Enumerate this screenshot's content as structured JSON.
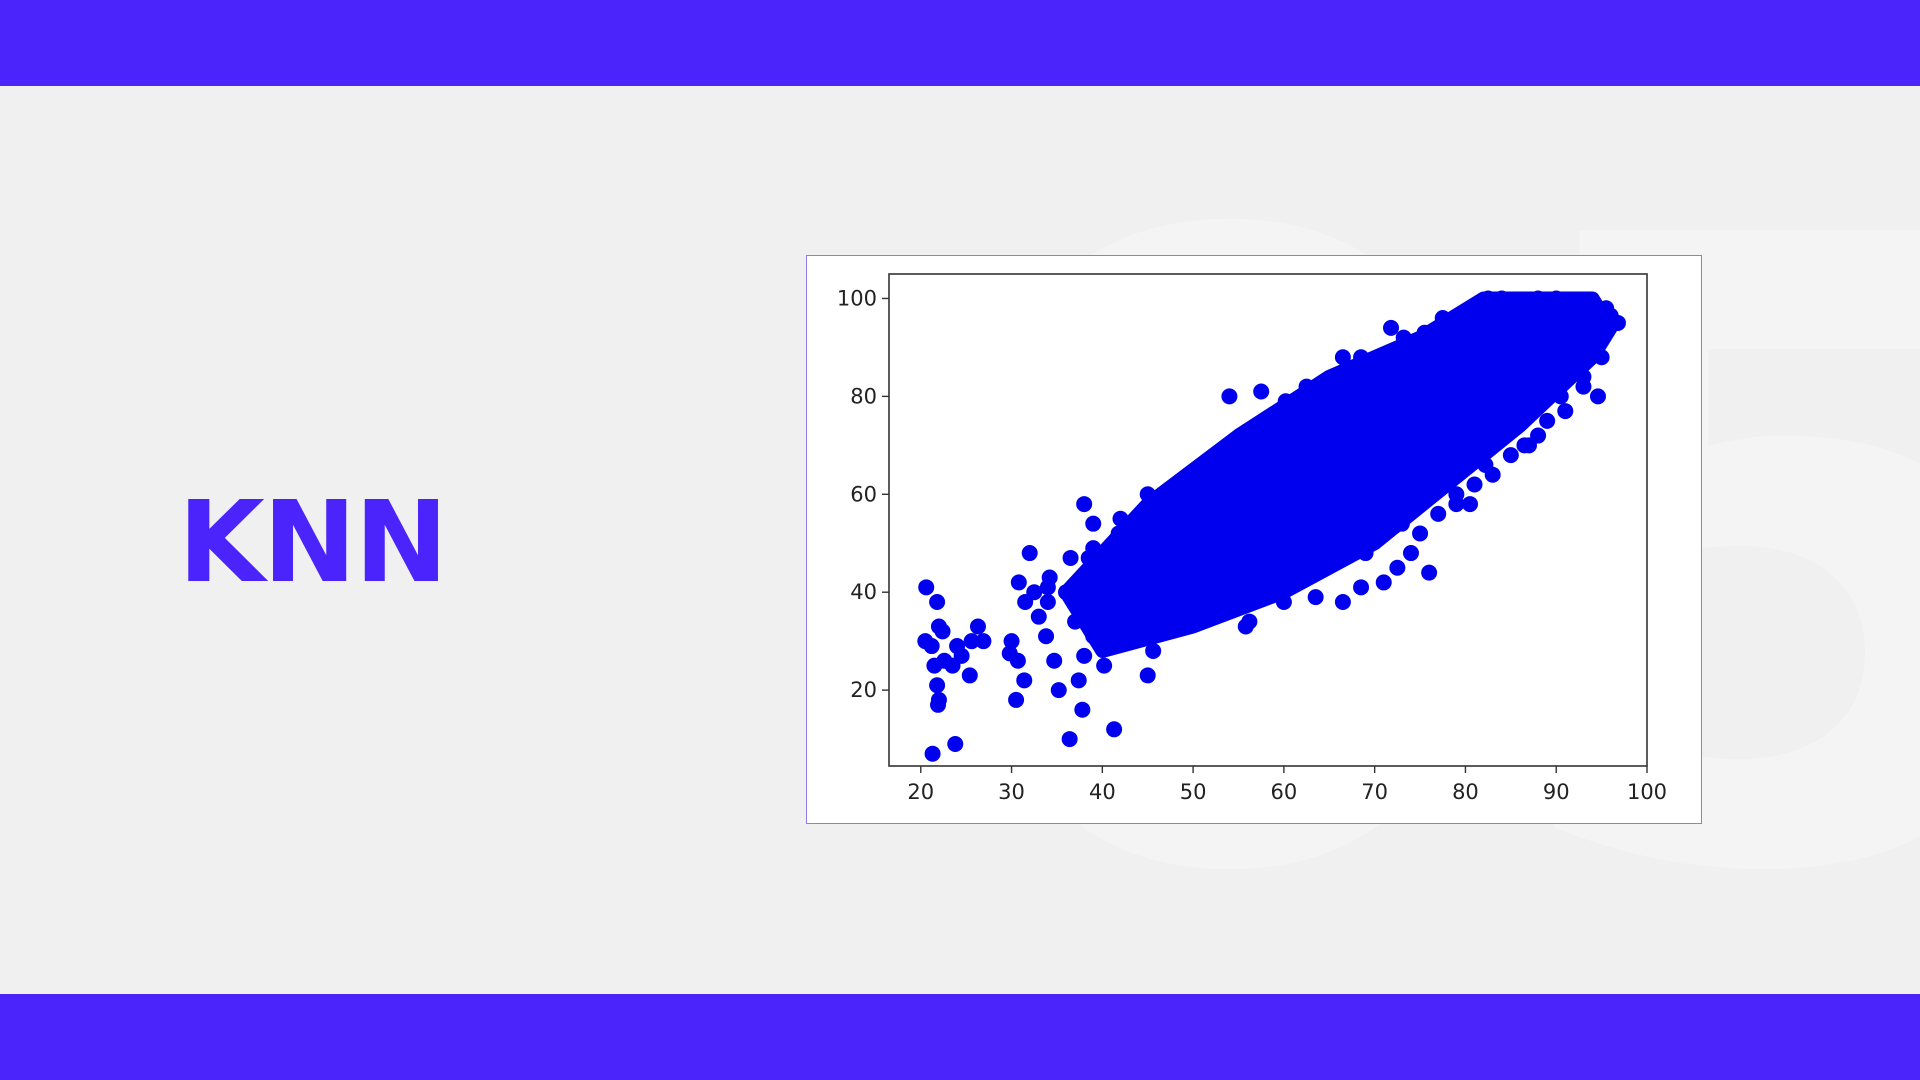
{
  "slide": {
    "title": "KNN",
    "watermark": "05",
    "accent_color": "#4a24fb"
  },
  "chart_data": {
    "type": "scatter",
    "title": "",
    "xlabel": "",
    "ylabel": "",
    "xlim": [
      16.5,
      100
    ],
    "ylim": [
      4.5,
      105
    ],
    "x_ticks": [
      20,
      30,
      40,
      50,
      60,
      70,
      80,
      90,
      100
    ],
    "y_ticks": [
      20,
      40,
      60,
      80,
      100
    ],
    "grid": false,
    "legend": "none",
    "marker_color": "#0000ee",
    "points": [
      [
        20.6,
        41
      ],
      [
        21.8,
        38
      ],
      [
        20.5,
        30
      ],
      [
        21.2,
        29
      ],
      [
        22,
        33
      ],
      [
        22.4,
        32
      ],
      [
        21.5,
        25
      ],
      [
        22.6,
        26
      ],
      [
        21.8,
        21
      ],
      [
        22,
        18
      ],
      [
        21.9,
        17
      ],
      [
        23.5,
        25
      ],
      [
        24.5,
        27
      ],
      [
        24,
        29
      ],
      [
        25.4,
        23
      ],
      [
        26.3,
        33
      ],
      [
        25.6,
        30
      ],
      [
        26.9,
        30
      ],
      [
        21.3,
        7
      ],
      [
        23.8,
        9
      ],
      [
        30,
        30
      ],
      [
        29.8,
        27.5
      ],
      [
        30.7,
        26
      ],
      [
        30.5,
        18
      ],
      [
        31.4,
        22
      ],
      [
        30.8,
        42
      ],
      [
        31.5,
        38
      ],
      [
        32,
        48
      ],
      [
        32.5,
        40
      ],
      [
        33,
        35
      ],
      [
        33.8,
        31
      ],
      [
        34.2,
        43
      ],
      [
        34.7,
        26
      ],
      [
        35.2,
        20
      ],
      [
        36.4,
        10
      ],
      [
        37.8,
        16
      ],
      [
        37.4,
        22
      ],
      [
        38,
        27
      ],
      [
        38.5,
        47
      ],
      [
        38,
        58
      ],
      [
        39,
        54
      ],
      [
        40.2,
        25
      ],
      [
        41.3,
        12
      ],
      [
        45,
        23
      ],
      [
        45.6,
        28
      ],
      [
        45,
        60
      ],
      [
        47.2,
        58
      ],
      [
        49.5,
        64
      ],
      [
        54,
        80
      ],
      [
        57.5,
        81
      ],
      [
        55.8,
        33
      ],
      [
        56.2,
        34
      ],
      [
        60,
        38
      ],
      [
        63.5,
        39
      ],
      [
        66.5,
        38
      ],
      [
        68.5,
        41
      ],
      [
        71,
        42
      ],
      [
        72.5,
        45
      ],
      [
        74,
        48
      ],
      [
        76,
        44
      ],
      [
        79,
        58
      ],
      [
        80.5,
        58
      ],
      [
        82.2,
        66
      ],
      [
        86.5,
        70
      ],
      [
        88,
        72
      ],
      [
        90.5,
        80
      ],
      [
        92.2,
        90
      ],
      [
        94.5,
        94
      ],
      [
        96.8,
        95
      ],
      [
        95.5,
        98
      ],
      [
        88,
        100
      ],
      [
        82.5,
        100
      ],
      [
        77.5,
        96
      ],
      [
        73.2,
        92
      ],
      [
        71.8,
        94
      ],
      [
        68.5,
        88
      ],
      [
        66.5,
        88
      ],
      [
        62.5,
        82
      ],
      [
        60.2,
        79
      ],
      [
        64.5,
        72
      ],
      [
        58.2,
        74
      ],
      [
        52.5,
        67
      ],
      [
        50.8,
        63
      ],
      [
        44.8,
        56
      ],
      [
        41.8,
        52
      ],
      [
        36.5,
        47
      ],
      [
        34,
        38
      ],
      [
        43,
        36
      ],
      [
        47,
        42
      ],
      [
        55,
        44
      ],
      [
        60,
        49
      ],
      [
        69,
        53
      ],
      [
        78,
        63
      ],
      [
        85,
        74
      ],
      [
        90,
        86
      ],
      [
        93,
        82
      ],
      [
        94.6,
        80
      ],
      [
        85.3,
        79
      ],
      [
        92,
        99
      ],
      [
        90,
        100
      ],
      [
        84,
        100
      ],
      [
        96,
        96.5
      ],
      [
        89.5,
        91.5
      ],
      [
        93.8,
        88.5
      ],
      [
        91.5,
        85
      ],
      [
        79.5,
        96
      ],
      [
        75.5,
        93
      ],
      [
        86.3,
        95
      ],
      [
        83.8,
        91
      ],
      [
        89,
        96
      ],
      [
        94,
        91
      ],
      [
        87,
        88
      ],
      [
        85,
        85
      ],
      [
        82,
        88
      ],
      [
        79,
        91
      ],
      [
        76,
        86
      ],
      [
        73,
        89
      ],
      [
        70,
        84
      ],
      [
        68,
        81
      ],
      [
        66,
        84
      ],
      [
        64,
        79
      ],
      [
        62,
        76
      ],
      [
        60,
        73
      ],
      [
        58,
        71
      ],
      [
        56,
        69
      ],
      [
        54,
        66
      ],
      [
        52,
        63
      ],
      [
        50,
        60
      ],
      [
        48,
        58
      ],
      [
        46,
        55
      ],
      [
        44,
        52
      ],
      [
        42,
        49
      ],
      [
        40,
        46
      ],
      [
        38,
        43
      ],
      [
        36,
        40
      ],
      [
        34,
        41
      ],
      [
        37,
        34
      ],
      [
        39,
        31
      ],
      [
        41,
        33
      ],
      [
        43,
        31
      ],
      [
        45,
        33
      ],
      [
        47,
        36
      ],
      [
        49,
        38
      ],
      [
        51,
        40
      ],
      [
        53,
        42
      ],
      [
        55,
        41
      ],
      [
        57,
        44
      ],
      [
        59,
        45
      ],
      [
        61,
        47
      ],
      [
        63,
        48
      ],
      [
        65,
        50
      ],
      [
        67,
        51
      ],
      [
        69,
        48
      ],
      [
        71,
        52
      ],
      [
        73,
        54
      ],
      [
        75,
        52
      ],
      [
        77,
        56
      ],
      [
        79,
        60
      ],
      [
        81,
        62
      ],
      [
        83,
        64
      ],
      [
        85,
        68
      ],
      [
        87,
        70
      ],
      [
        89,
        75
      ],
      [
        91,
        77
      ],
      [
        93,
        84
      ],
      [
        95,
        88
      ],
      [
        39,
        49
      ],
      [
        43,
        45
      ],
      [
        47,
        49
      ],
      [
        51,
        53
      ],
      [
        55,
        57
      ],
      [
        59,
        61
      ],
      [
        63,
        65
      ],
      [
        67,
        69
      ],
      [
        71,
        73
      ],
      [
        75,
        77
      ],
      [
        79,
        81
      ],
      [
        83,
        85
      ],
      [
        87,
        89
      ],
      [
        91,
        93
      ],
      [
        41,
        41
      ],
      [
        45,
        45
      ],
      [
        49,
        49
      ],
      [
        53,
        53
      ],
      [
        57,
        57
      ],
      [
        61,
        61
      ],
      [
        65,
        65
      ],
      [
        69,
        69
      ],
      [
        73,
        73
      ],
      [
        77,
        77
      ],
      [
        81,
        81
      ],
      [
        85,
        85
      ],
      [
        89,
        89
      ],
      [
        93,
        93
      ],
      [
        44,
        40
      ],
      [
        48,
        44
      ],
      [
        52,
        48
      ],
      [
        56,
        52
      ],
      [
        60,
        56
      ],
      [
        64,
        60
      ],
      [
        68,
        64
      ],
      [
        72,
        68
      ],
      [
        76,
        72
      ],
      [
        80,
        76
      ],
      [
        84,
        80
      ],
      [
        88,
        84
      ],
      [
        92,
        88
      ],
      [
        42,
        55
      ],
      [
        46,
        59
      ],
      [
        50,
        56
      ],
      [
        54,
        60
      ],
      [
        58,
        64
      ],
      [
        62,
        68
      ],
      [
        66,
        72
      ],
      [
        70,
        76
      ],
      [
        74,
        80
      ],
      [
        78,
        84
      ],
      [
        82,
        92
      ],
      [
        86,
        92
      ],
      [
        90,
        96
      ],
      [
        50,
        46
      ],
      [
        54,
        50
      ],
      [
        58,
        54
      ],
      [
        62,
        58
      ],
      [
        66,
        62
      ],
      [
        70,
        66
      ],
      [
        74,
        70
      ],
      [
        78,
        74
      ],
      [
        82,
        78
      ],
      [
        86,
        82
      ],
      [
        90,
        90
      ],
      [
        94,
        96
      ]
    ]
  }
}
